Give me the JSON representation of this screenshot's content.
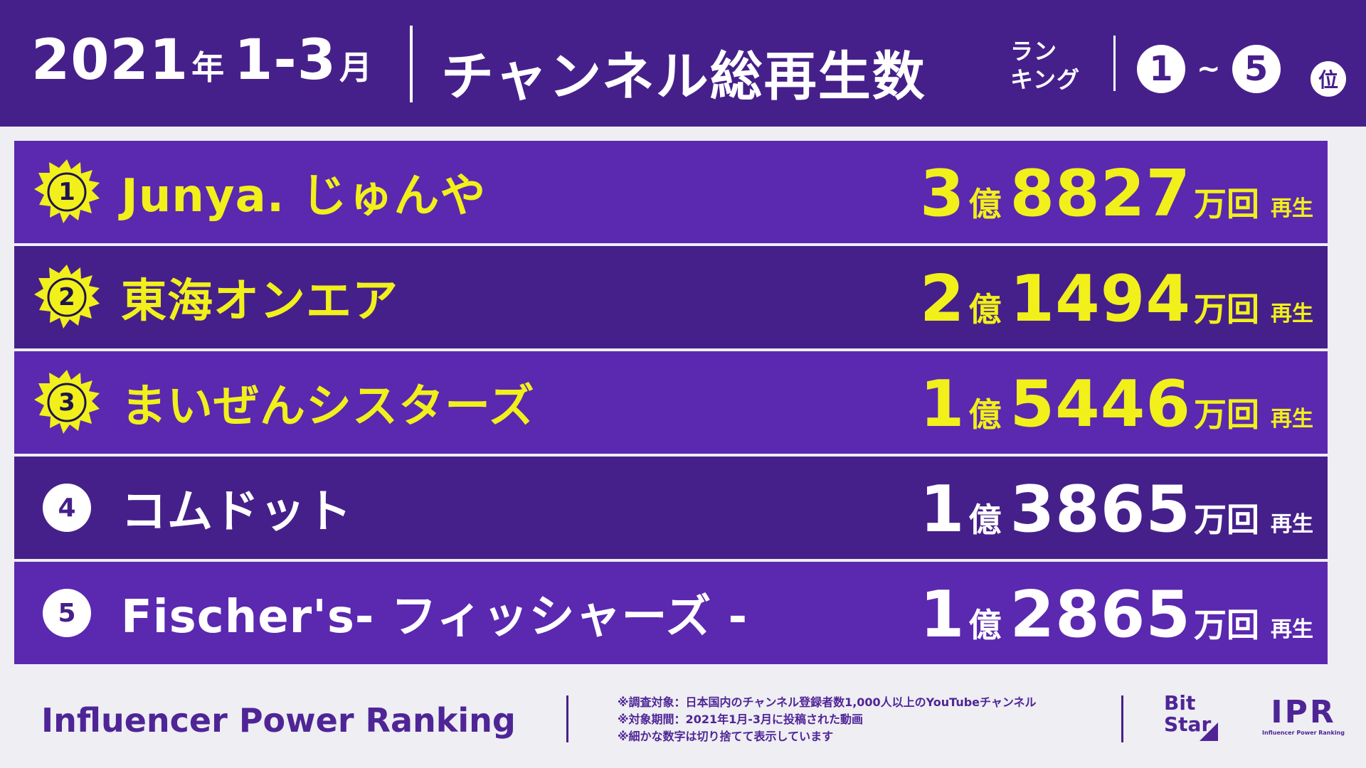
{
  "header": {
    "year": "2021",
    "year_unit": "年",
    "months": "1-3",
    "month_unit": "月",
    "title": "チャンネル総再生数",
    "subtitle_line1": "ラン",
    "subtitle_line2": "キング",
    "range_start": "1",
    "range_tilde": "~",
    "range_end": "5",
    "position_label": "位"
  },
  "colors": {
    "header_bg": "#46208a",
    "row_light": "#5b28b0",
    "row_dark": "#45208a",
    "highlight_yellow": "#f1f01b",
    "badge_gold": "#f1f01b",
    "page_bg": "#eeeef3"
  },
  "rankings": [
    {
      "rank": "1",
      "name": "Junya. じゅんや",
      "oku": "3",
      "man": "8827",
      "top3": true
    },
    {
      "rank": "2",
      "name": "東海オンエア",
      "oku": "2",
      "man": "1494",
      "top3": true
    },
    {
      "rank": "3",
      "name": "まいぜんシスターズ",
      "oku": "1",
      "man": "5446",
      "top3": true
    },
    {
      "rank": "4",
      "name": "コムドット",
      "oku": "1",
      "man": "3865",
      "top3": false
    },
    {
      "rank": "5",
      "name": "Fischer's- フィッシャーズ -",
      "oku": "1",
      "man": "2865",
      "top3": false
    }
  ],
  "units": {
    "oku": "億",
    "man_kai": "万回",
    "saisei": "再生"
  },
  "footer": {
    "brand": "Influencer Power Ranking",
    "notes": [
      "※調査対象：日本国内のチャンネル登録者数1,000人以上のYouTubeチャンネル",
      "※対象期間：2021年1月-3月に投稿された動画",
      "※細かな数字は切り捨てて表示しています"
    ],
    "logo_bitstar_line1": "Bit",
    "logo_bitstar_line2": "Star",
    "logo_ipr": "IPR",
    "logo_ipr_sub": "Influencer Power Ranking"
  }
}
